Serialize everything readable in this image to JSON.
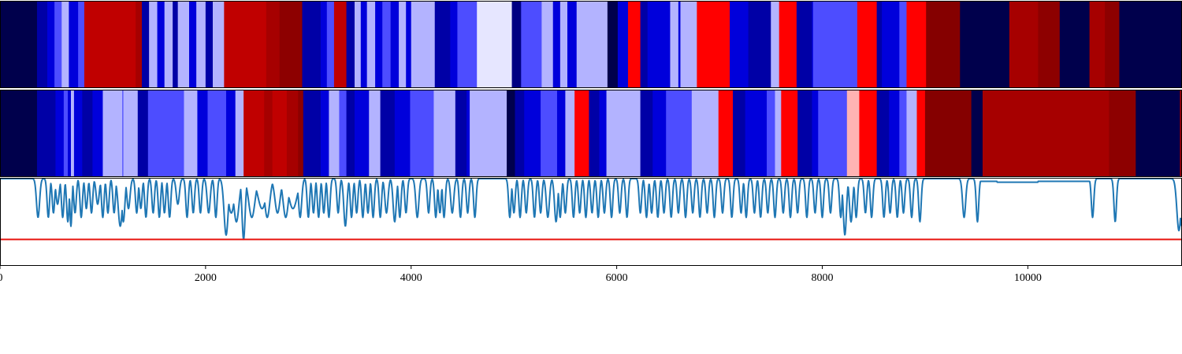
{
  "chart_data": [
    {
      "type": "heatmap",
      "title": "",
      "xlabel": "",
      "ylabel": "",
      "xlim": [
        0,
        11500
      ],
      "colormap": "seismic",
      "value_range": [
        -1,
        1
      ],
      "segments": [
        [
          0,
          -1.0
        ],
        [
          360,
          -0.75
        ],
        [
          460,
          -0.6
        ],
        [
          530,
          -0.35
        ],
        [
          600,
          -0.15
        ],
        [
          670,
          -0.6
        ],
        [
          760,
          -0.35
        ],
        [
          820,
          0.75
        ],
        [
          1320,
          0.85
        ],
        [
          1380,
          -0.75
        ],
        [
          1450,
          -0.15
        ],
        [
          1530,
          -0.6
        ],
        [
          1600,
          -0.15
        ],
        [
          1680,
          -0.75
        ],
        [
          1730,
          -0.15
        ],
        [
          1840,
          -0.6
        ],
        [
          1910,
          -0.15
        ],
        [
          2000,
          -0.75
        ],
        [
          2070,
          -0.15
        ],
        [
          2180,
          0.75
        ],
        [
          2590,
          0.85
        ],
        [
          2720,
          0.95
        ],
        [
          2940,
          -0.75
        ],
        [
          3120,
          -0.6
        ],
        [
          3180,
          -0.35
        ],
        [
          3250,
          0.75
        ],
        [
          3370,
          -0.75
        ],
        [
          3450,
          -0.15
        ],
        [
          3510,
          -0.6
        ],
        [
          3570,
          -0.15
        ],
        [
          3650,
          -0.6
        ],
        [
          3720,
          -0.35
        ],
        [
          3800,
          -0.6
        ],
        [
          3880,
          -0.15
        ],
        [
          3950,
          -0.6
        ],
        [
          4000,
          -0.15
        ],
        [
          4230,
          -0.75
        ],
        [
          4380,
          -0.6
        ],
        [
          4450,
          -0.35
        ],
        [
          4640,
          -0.05
        ],
        [
          4980,
          -0.85
        ],
        [
          5070,
          -0.35
        ],
        [
          5270,
          -0.15
        ],
        [
          5380,
          -0.6
        ],
        [
          5450,
          -0.15
        ],
        [
          5520,
          -0.6
        ],
        [
          5610,
          -0.15
        ],
        [
          5910,
          -1.0
        ],
        [
          6010,
          -0.6
        ],
        [
          6110,
          0.5
        ],
        [
          6230,
          -0.75
        ],
        [
          6300,
          -0.6
        ],
        [
          6520,
          -0.15
        ],
        [
          6600,
          -0.6
        ],
        [
          6620,
          -0.15
        ],
        [
          6780,
          0.5
        ],
        [
          7100,
          -0.6
        ],
        [
          7280,
          -0.75
        ],
        [
          7500,
          -0.15
        ],
        [
          7580,
          0.5
        ],
        [
          7750,
          -0.75
        ],
        [
          7900,
          -0.6
        ],
        [
          7910,
          -0.35
        ],
        [
          8340,
          0.5
        ],
        [
          8530,
          -0.75
        ],
        [
          8580,
          -0.6
        ],
        [
          8750,
          -0.35
        ],
        [
          8820,
          0.5
        ],
        [
          9010,
          0.98
        ],
        [
          9340,
          -1.0
        ],
        [
          9820,
          0.85
        ],
        [
          10100,
          0.95
        ],
        [
          10310,
          -1.0
        ],
        [
          10600,
          0.85
        ],
        [
          10750,
          0.95
        ],
        [
          10890,
          -1.0
        ],
        [
          11500,
          -1.0
        ]
      ]
    },
    {
      "type": "heatmap",
      "title": "",
      "xlabel": "",
      "ylabel": "",
      "xlim": [
        0,
        11500
      ],
      "colormap": "seismic",
      "value_range": [
        -1,
        1
      ],
      "segments": [
        [
          0,
          -1.0
        ],
        [
          360,
          -0.75
        ],
        [
          540,
          -0.6
        ],
        [
          620,
          -0.35
        ],
        [
          660,
          -0.6
        ],
        [
          690,
          -0.15
        ],
        [
          720,
          -0.6
        ],
        [
          800,
          -0.75
        ],
        [
          900,
          -0.6
        ],
        [
          1000,
          -0.15
        ],
        [
          1190,
          -0.35
        ],
        [
          1200,
          -0.15
        ],
        [
          1340,
          -0.75
        ],
        [
          1440,
          -0.35
        ],
        [
          1790,
          -0.15
        ],
        [
          1920,
          -0.6
        ],
        [
          2020,
          -0.35
        ],
        [
          2200,
          -0.6
        ],
        [
          2290,
          -0.15
        ],
        [
          2370,
          0.75
        ],
        [
          2570,
          0.85
        ],
        [
          2650,
          0.75
        ],
        [
          2790,
          0.85
        ],
        [
          2900,
          0.95
        ],
        [
          2950,
          -0.75
        ],
        [
          3120,
          -0.6
        ],
        [
          3200,
          -0.15
        ],
        [
          3300,
          -0.35
        ],
        [
          3370,
          -0.75
        ],
        [
          3450,
          -0.6
        ],
        [
          3590,
          -0.15
        ],
        [
          3700,
          -0.75
        ],
        [
          3840,
          -0.6
        ],
        [
          3990,
          -0.35
        ],
        [
          4220,
          -0.15
        ],
        [
          4430,
          -0.75
        ],
        [
          4540,
          -0.6
        ],
        [
          4570,
          -0.15
        ],
        [
          4930,
          -1.0
        ],
        [
          5010,
          -0.75
        ],
        [
          5100,
          -0.6
        ],
        [
          5260,
          -0.35
        ],
        [
          5420,
          -0.6
        ],
        [
          5500,
          -0.15
        ],
        [
          5590,
          0.5
        ],
        [
          5730,
          -0.75
        ],
        [
          5830,
          -0.6
        ],
        [
          5900,
          -0.15
        ],
        [
          6230,
          -0.75
        ],
        [
          6350,
          -0.6
        ],
        [
          6480,
          -0.35
        ],
        [
          6730,
          -0.15
        ],
        [
          6990,
          0.5
        ],
        [
          7130,
          -0.75
        ],
        [
          7250,
          -0.6
        ],
        [
          7460,
          -0.35
        ],
        [
          7540,
          -0.15
        ],
        [
          7600,
          0.5
        ],
        [
          7760,
          -0.75
        ],
        [
          7900,
          -0.6
        ],
        [
          7960,
          -0.35
        ],
        [
          8240,
          0.15
        ],
        [
          8360,
          0.5
        ],
        [
          8530,
          -0.75
        ],
        [
          8650,
          -0.6
        ],
        [
          8750,
          -0.35
        ],
        [
          8820,
          -0.15
        ],
        [
          8920,
          0.5
        ],
        [
          9000,
          0.98
        ],
        [
          9450,
          -1.0
        ],
        [
          9560,
          0.85
        ],
        [
          10790,
          0.95
        ],
        [
          11050,
          -1.0
        ],
        [
          11480,
          0.85
        ],
        [
          11500,
          0.85
        ]
      ]
    },
    {
      "type": "line",
      "title": "",
      "xlabel": "",
      "ylabel": "",
      "xlim": [
        0,
        11500
      ],
      "ylim": [
        0,
        1
      ],
      "x_ticks": [
        0,
        2000,
        4000,
        6000,
        8000,
        10000
      ],
      "x_tick_labels": [
        "0",
        "2000",
        "4000",
        "6000",
        "8000",
        "10000"
      ],
      "threshold": 0.3,
      "baseline": 0.99,
      "dips": [
        [
          370,
          0.55,
          15
        ],
        [
          470,
          0.55,
          12
        ],
        [
          520,
          0.6,
          12
        ],
        [
          560,
          0.7,
          15
        ],
        [
          610,
          0.55,
          12
        ],
        [
          660,
          0.5,
          12
        ],
        [
          690,
          0.45,
          10
        ],
        [
          730,
          0.6,
          12
        ],
        [
          790,
          0.55,
          12
        ],
        [
          840,
          0.65,
          12
        ],
        [
          890,
          0.6,
          12
        ],
        [
          950,
          0.7,
          15
        ],
        [
          1000,
          0.55,
          12
        ],
        [
          1050,
          0.6,
          12
        ],
        [
          1110,
          0.6,
          12
        ],
        [
          1170,
          0.45,
          20
        ],
        [
          1200,
          0.5,
          15
        ],
        [
          1250,
          0.65,
          15
        ],
        [
          1330,
          0.6,
          12
        ],
        [
          1370,
          0.65,
          12
        ],
        [
          1420,
          0.55,
          12
        ],
        [
          1490,
          0.6,
          12
        ],
        [
          1550,
          0.55,
          12
        ],
        [
          1600,
          0.6,
          12
        ],
        [
          1650,
          0.55,
          12
        ],
        [
          1730,
          0.7,
          15
        ],
        [
          1820,
          0.55,
          12
        ],
        [
          1880,
          0.6,
          12
        ],
        [
          1950,
          0.6,
          12
        ],
        [
          2030,
          0.6,
          15
        ],
        [
          2100,
          0.55,
          12
        ],
        [
          2200,
          0.35,
          20
        ],
        [
          2250,
          0.6,
          30
        ],
        [
          2300,
          0.5,
          25
        ],
        [
          2370,
          0.3,
          15
        ],
        [
          2450,
          0.55,
          30
        ],
        [
          2550,
          0.65,
          40
        ],
        [
          2600,
          0.55,
          25
        ],
        [
          2700,
          0.6,
          25
        ],
        [
          2780,
          0.55,
          25
        ],
        [
          2850,
          0.65,
          40
        ],
        [
          2920,
          0.55,
          15
        ],
        [
          3000,
          0.55,
          12
        ],
        [
          3050,
          0.6,
          12
        ],
        [
          3100,
          0.55,
          12
        ],
        [
          3150,
          0.6,
          12
        ],
        [
          3200,
          0.55,
          12
        ],
        [
          3290,
          0.6,
          12
        ],
        [
          3360,
          0.45,
          15
        ],
        [
          3420,
          0.55,
          12
        ],
        [
          3470,
          0.6,
          12
        ],
        [
          3530,
          0.55,
          12
        ],
        [
          3580,
          0.6,
          12
        ],
        [
          3630,
          0.55,
          12
        ],
        [
          3700,
          0.55,
          12
        ],
        [
          3760,
          0.6,
          15
        ],
        [
          3840,
          0.5,
          15
        ],
        [
          3890,
          0.55,
          12
        ],
        [
          3950,
          0.6,
          12
        ],
        [
          4060,
          0.55,
          15
        ],
        [
          4170,
          0.6,
          12
        ],
        [
          4240,
          0.55,
          12
        ],
        [
          4280,
          0.6,
          12
        ],
        [
          4320,
          0.55,
          12
        ],
        [
          4400,
          0.6,
          15
        ],
        [
          4480,
          0.55,
          12
        ],
        [
          4550,
          0.6,
          12
        ],
        [
          4620,
          0.55,
          12
        ],
        [
          4960,
          0.55,
          12
        ],
        [
          5000,
          0.6,
          12
        ],
        [
          5060,
          0.55,
          12
        ],
        [
          5120,
          0.6,
          12
        ],
        [
          5200,
          0.55,
          12
        ],
        [
          5260,
          0.6,
          12
        ],
        [
          5330,
          0.55,
          15
        ],
        [
          5410,
          0.5,
          15
        ],
        [
          5450,
          0.55,
          12
        ],
        [
          5500,
          0.6,
          12
        ],
        [
          5580,
          0.55,
          12
        ],
        [
          5640,
          0.6,
          12
        ],
        [
          5700,
          0.55,
          12
        ],
        [
          5760,
          0.6,
          12
        ],
        [
          5820,
          0.55,
          12
        ],
        [
          5880,
          0.6,
          12
        ],
        [
          5950,
          0.55,
          12
        ],
        [
          6030,
          0.6,
          12
        ],
        [
          6100,
          0.55,
          12
        ],
        [
          6230,
          0.6,
          12
        ],
        [
          6290,
          0.55,
          12
        ],
        [
          6340,
          0.6,
          12
        ],
        [
          6400,
          0.55,
          12
        ],
        [
          6460,
          0.6,
          12
        ],
        [
          6530,
          0.55,
          12
        ],
        [
          6600,
          0.6,
          12
        ],
        [
          6670,
          0.55,
          12
        ],
        [
          6740,
          0.6,
          12
        ],
        [
          6810,
          0.55,
          12
        ],
        [
          6880,
          0.6,
          12
        ],
        [
          6950,
          0.55,
          12
        ],
        [
          7030,
          0.6,
          12
        ],
        [
          7120,
          0.55,
          12
        ],
        [
          7210,
          0.6,
          12
        ],
        [
          7260,
          0.55,
          12
        ],
        [
          7340,
          0.6,
          12
        ],
        [
          7400,
          0.55,
          12
        ],
        [
          7470,
          0.6,
          12
        ],
        [
          7540,
          0.55,
          12
        ],
        [
          7620,
          0.6,
          12
        ],
        [
          7690,
          0.55,
          12
        ],
        [
          7760,
          0.6,
          12
        ],
        [
          7850,
          0.55,
          12
        ],
        [
          7930,
          0.6,
          12
        ],
        [
          8000,
          0.55,
          12
        ],
        [
          8080,
          0.6,
          12
        ],
        [
          8180,
          0.55,
          12
        ],
        [
          8220,
          0.35,
          15
        ],
        [
          8280,
          0.5,
          15
        ],
        [
          8330,
          0.55,
          12
        ],
        [
          8420,
          0.6,
          12
        ],
        [
          8480,
          0.55,
          12
        ],
        [
          8600,
          0.55,
          12
        ],
        [
          8660,
          0.6,
          12
        ],
        [
          8730,
          0.55,
          12
        ],
        [
          8790,
          0.6,
          12
        ],
        [
          8870,
          0.55,
          12
        ],
        [
          8950,
          0.5,
          12
        ],
        [
          9380,
          0.55,
          15
        ],
        [
          9510,
          0.5,
          12
        ],
        [
          10630,
          0.55,
          12
        ],
        [
          10850,
          0.5,
          12
        ],
        [
          11470,
          0.4,
          20
        ],
        [
          11500,
          0.45,
          25
        ]
      ],
      "plateaus": [
        [
          9520,
          9700,
          0.96
        ],
        [
          9700,
          10100,
          0.95
        ],
        [
          10100,
          10600,
          0.96
        ]
      ]
    }
  ]
}
